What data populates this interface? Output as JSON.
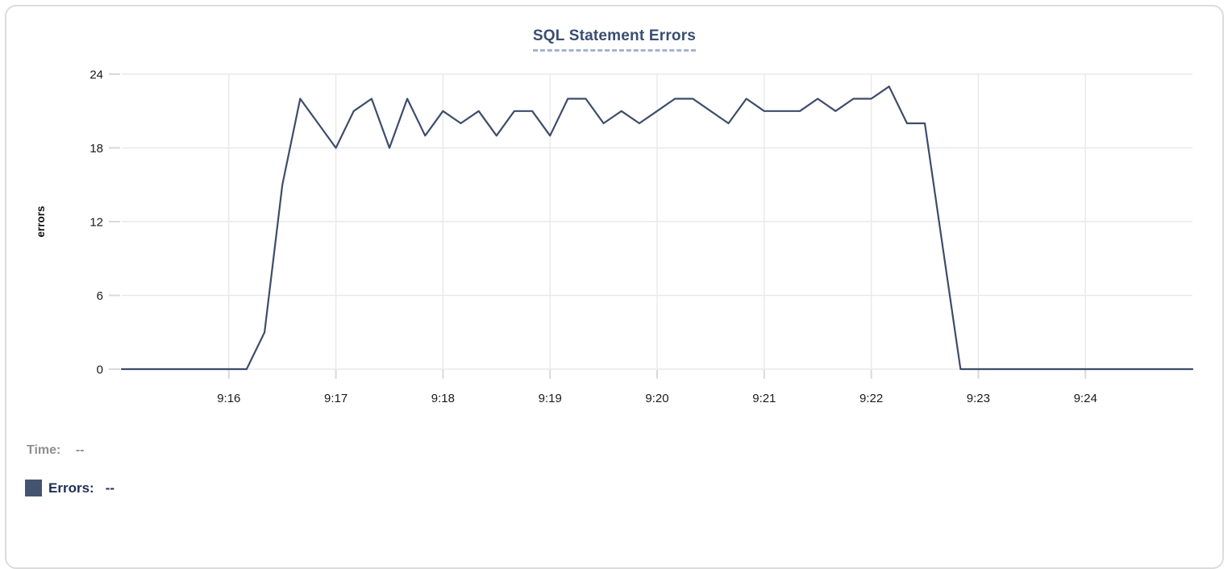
{
  "chart_data": {
    "type": "line",
    "title": "SQL Statement Errors",
    "xlabel": "",
    "ylabel": "errors",
    "ylim": [
      0,
      24
    ],
    "y_ticks": [
      0,
      6,
      12,
      18,
      24
    ],
    "x_domain": [
      "9:15:00",
      "9:25:00"
    ],
    "x_ticks": [
      "9:16",
      "9:17",
      "9:18",
      "9:19",
      "9:20",
      "9:21",
      "9:22",
      "9:23",
      "9:24"
    ],
    "grid": true,
    "grid_color": "#e9e9e9",
    "tick_mark_color": "#d9d9d9",
    "axis_text_color": "#1a1a1a",
    "legend_position": "bottom-left",
    "series": [
      {
        "name": "Errors",
        "color": "#3e4c6b",
        "points": [
          [
            "9:15:00",
            0
          ],
          [
            "9:15:10",
            0
          ],
          [
            "9:15:20",
            0
          ],
          [
            "9:15:30",
            0
          ],
          [
            "9:15:40",
            0
          ],
          [
            "9:15:50",
            0
          ],
          [
            "9:16:00",
            0
          ],
          [
            "9:16:10",
            0
          ],
          [
            "9:16:20",
            3
          ],
          [
            "9:16:30",
            15
          ],
          [
            "9:16:40",
            22
          ],
          [
            "9:16:50",
            20
          ],
          [
            "9:17:00",
            18
          ],
          [
            "9:17:10",
            21
          ],
          [
            "9:17:20",
            22
          ],
          [
            "9:17:30",
            18
          ],
          [
            "9:17:40",
            22
          ],
          [
            "9:17:50",
            19
          ],
          [
            "9:18:00",
            21
          ],
          [
            "9:18:10",
            20
          ],
          [
            "9:18:20",
            21
          ],
          [
            "9:18:30",
            19
          ],
          [
            "9:18:40",
            21
          ],
          [
            "9:18:50",
            21
          ],
          [
            "9:19:00",
            19
          ],
          [
            "9:19:10",
            22
          ],
          [
            "9:19:20",
            22
          ],
          [
            "9:19:30",
            20
          ],
          [
            "9:19:40",
            21
          ],
          [
            "9:19:50",
            20
          ],
          [
            "9:20:00",
            21
          ],
          [
            "9:20:10",
            22
          ],
          [
            "9:20:20",
            22
          ],
          [
            "9:20:30",
            21
          ],
          [
            "9:20:40",
            20
          ],
          [
            "9:20:50",
            22
          ],
          [
            "9:21:00",
            21
          ],
          [
            "9:21:10",
            21
          ],
          [
            "9:21:20",
            21
          ],
          [
            "9:21:30",
            22
          ],
          [
            "9:21:40",
            21
          ],
          [
            "9:21:50",
            22
          ],
          [
            "9:22:00",
            22
          ],
          [
            "9:22:10",
            23
          ],
          [
            "9:22:20",
            20
          ],
          [
            "9:22:30",
            20
          ],
          [
            "9:22:40",
            10
          ],
          [
            "9:22:50",
            0
          ],
          [
            "9:23:00",
            0
          ],
          [
            "9:23:10",
            0
          ],
          [
            "9:23:20",
            0
          ],
          [
            "9:23:30",
            0
          ],
          [
            "9:23:40",
            0
          ],
          [
            "9:23:50",
            0
          ],
          [
            "9:24:00",
            0
          ],
          [
            "9:24:10",
            0
          ],
          [
            "9:24:20",
            0
          ],
          [
            "9:24:30",
            0
          ],
          [
            "9:24:40",
            0
          ],
          [
            "9:24:50",
            0
          ],
          [
            "9:25:00",
            0
          ]
        ]
      }
    ]
  },
  "tooltip_readout": {
    "time_label": "Time:",
    "time_value": "--",
    "errors_label": "Errors:",
    "errors_value": "--"
  },
  "colors": {
    "title": "#3a4e71",
    "title_underline": "#a6b2cc",
    "line": "#3e4c6b",
    "swatch": "#44536f",
    "time_label": "#909090",
    "errors_label": "#1d2f55",
    "card_border": "#dcdcdc"
  }
}
